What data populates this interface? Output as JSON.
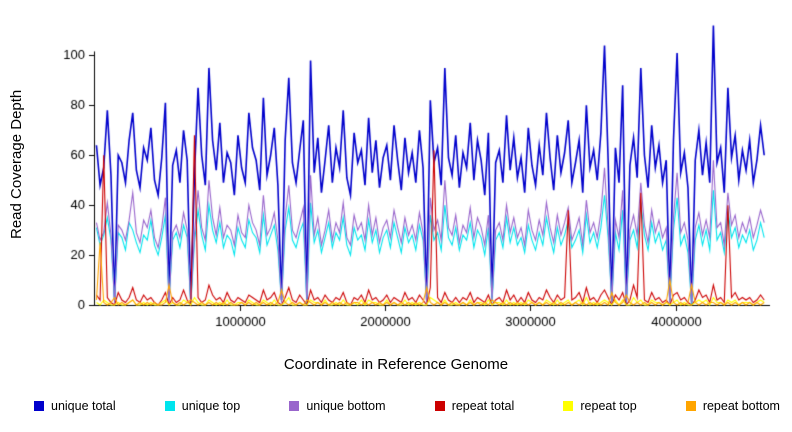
{
  "chart_data": {
    "type": "line",
    "title": "",
    "xlabel": "Coordinate in Reference Genome",
    "ylabel": "Read Coverage Depth",
    "xlim": [
      0,
      4650000
    ],
    "ylim": [
      0,
      115
    ],
    "x_ticks": [
      1000000,
      2000000,
      3000000,
      4000000
    ],
    "x_tick_labels": [
      "1000000",
      "2000000",
      "3000000",
      "4000000"
    ],
    "y_ticks": [
      0,
      20,
      40,
      60,
      80,
      100
    ],
    "x_start": 10000,
    "x_step": 25000,
    "grid": false,
    "legend_position": "bottom",
    "axis_color": "#000000",
    "series": [
      {
        "name": "unique total",
        "color": "#0000CC",
        "values": [
          64,
          48,
          55,
          78,
          52,
          2,
          60,
          57,
          49,
          66,
          77,
          54,
          47,
          63,
          58,
          71,
          50,
          44,
          59,
          81,
          3,
          56,
          62,
          49,
          70,
          58,
          1,
          52,
          87,
          60,
          48,
          95,
          66,
          54,
          73,
          49,
          61,
          57,
          44,
          68,
          55,
          49,
          77,
          63,
          58,
          46,
          83,
          52,
          60,
          71,
          48,
          2,
          66,
          91,
          57,
          49,
          62,
          74,
          1,
          98,
          53,
          67,
          45,
          58,
          72,
          49,
          63,
          55,
          78,
          51,
          44,
          69,
          57,
          62,
          48,
          75,
          53,
          66,
          47,
          59,
          64,
          50,
          72,
          58,
          46,
          67,
          53,
          61,
          49,
          70,
          55,
          2,
          82,
          57,
          63,
          48,
          95,
          59,
          52,
          68,
          47,
          61,
          55,
          73,
          50,
          66,
          58,
          44,
          69,
          3,
          57,
          62,
          49,
          76,
          54,
          67,
          51,
          59,
          45,
          71,
          56,
          48,
          64,
          52,
          77,
          59,
          46,
          68,
          53,
          61,
          74,
          49,
          57,
          66,
          45,
          80,
          55,
          62,
          50,
          69,
          104,
          58,
          2,
          63,
          49,
          88,
          1,
          56,
          67,
          51,
          95,
          60,
          47,
          72,
          55,
          64,
          49,
          58,
          2,
          66,
          101,
          53,
          61,
          47,
          1,
          58,
          70,
          52,
          65,
          49,
          112,
          57,
          63,
          45,
          87,
          59,
          68,
          50,
          62,
          54,
          66,
          49,
          58,
          72,
          60
        ]
      },
      {
        "name": "unique top",
        "color": "#00E5EE",
        "values": [
          31,
          24,
          28,
          35,
          26,
          1,
          29,
          27,
          22,
          33,
          30,
          25,
          21,
          28,
          26,
          34,
          24,
          20,
          27,
          36,
          2,
          26,
          29,
          23,
          32,
          27,
          0,
          25,
          38,
          28,
          22,
          40,
          30,
          25,
          33,
          23,
          28,
          26,
          20,
          31,
          26,
          23,
          34,
          29,
          27,
          21,
          36,
          24,
          28,
          32,
          22,
          1,
          30,
          39,
          26,
          23,
          29,
          33,
          0,
          41,
          25,
          30,
          21,
          27,
          33,
          23,
          29,
          26,
          35,
          24,
          20,
          31,
          26,
          28,
          22,
          34,
          25,
          30,
          21,
          27,
          30,
          23,
          33,
          27,
          21,
          31,
          25,
          28,
          22,
          32,
          26,
          1,
          36,
          26,
          29,
          22,
          40,
          27,
          24,
          31,
          22,
          28,
          26,
          33,
          23,
          30,
          27,
          20,
          31,
          1,
          26,
          29,
          23,
          35,
          25,
          31,
          24,
          27,
          21,
          32,
          26,
          22,
          29,
          24,
          35,
          27,
          21,
          31,
          24,
          28,
          34,
          23,
          26,
          30,
          21,
          36,
          25,
          29,
          23,
          31,
          44,
          27,
          1,
          29,
          22,
          38,
          0,
          26,
          30,
          23,
          41,
          28,
          22,
          33,
          25,
          29,
          22,
          26,
          1,
          30,
          43,
          24,
          28,
          21,
          0,
          26,
          32,
          24,
          30,
          22,
          46,
          26,
          29,
          21,
          38,
          27,
          31,
          23,
          28,
          25,
          30,
          22,
          26,
          33,
          27
        ]
      },
      {
        "name": "unique bottom",
        "color": "#9966CC",
        "values": [
          33,
          26,
          29,
          41,
          28,
          1,
          32,
          30,
          26,
          34,
          45,
          29,
          25,
          34,
          31,
          38,
          27,
          23,
          31,
          43,
          1,
          29,
          32,
          27,
          37,
          30,
          1,
          28,
          46,
          31,
          26,
          50,
          35,
          28,
          39,
          27,
          32,
          30,
          24,
          36,
          29,
          27,
          40,
          33,
          30,
          24,
          44,
          28,
          31,
          37,
          26,
          1,
          35,
          48,
          30,
          27,
          33,
          39,
          1,
          52,
          28,
          35,
          24,
          30,
          38,
          26,
          33,
          29,
          41,
          27,
          24,
          36,
          30,
          33,
          26,
          40,
          28,
          35,
          25,
          31,
          34,
          27,
          38,
          31,
          25,
          35,
          28,
          32,
          26,
          37,
          29,
          1,
          43,
          30,
          34,
          26,
          50,
          31,
          28,
          36,
          25,
          32,
          29,
          39,
          27,
          35,
          31,
          24,
          36,
          2,
          30,
          33,
          26,
          40,
          29,
          35,
          27,
          31,
          24,
          38,
          30,
          26,
          34,
          28,
          41,
          31,
          25,
          36,
          28,
          33,
          39,
          26,
          30,
          35,
          24,
          42,
          29,
          33,
          27,
          37,
          55,
          31,
          1,
          34,
          27,
          46,
          1,
          30,
          36,
          28,
          49,
          32,
          25,
          38,
          29,
          34,
          27,
          31,
          1,
          35,
          53,
          29,
          33,
          26,
          1,
          31,
          37,
          28,
          34,
          27,
          58,
          31,
          33,
          24,
          45,
          32,
          36,
          27,
          33,
          29,
          35,
          27,
          32,
          38,
          33
        ]
      },
      {
        "name": "repeat total",
        "color": "#CC0000",
        "values": [
          4,
          2,
          60,
          3,
          1,
          0,
          5,
          2,
          1,
          3,
          7,
          2,
          1,
          4,
          2,
          3,
          1,
          0,
          2,
          5,
          0,
          3,
          1,
          2,
          6,
          2,
          0,
          68,
          3,
          1,
          2,
          8,
          4,
          2,
          3,
          1,
          5,
          2,
          1,
          3,
          2,
          1,
          4,
          3,
          2,
          1,
          6,
          2,
          3,
          5,
          1,
          0,
          3,
          7,
          2,
          1,
          4,
          2,
          0,
          6,
          2,
          3,
          1,
          4,
          2,
          1,
          3,
          2,
          5,
          1,
          0,
          3,
          2,
          4,
          1,
          6,
          2,
          3,
          1,
          2,
          4,
          1,
          3,
          2,
          1,
          5,
          2,
          3,
          1,
          4,
          2,
          0,
          7,
          62,
          3,
          1,
          5,
          2,
          1,
          3,
          1,
          3,
          2,
          5,
          1,
          3,
          2,
          1,
          4,
          0,
          2,
          3,
          1,
          6,
          2,
          4,
          1,
          3,
          1,
          5,
          2,
          1,
          3,
          2,
          6,
          3,
          1,
          4,
          2,
          3,
          38,
          2,
          3,
          5,
          1,
          7,
          2,
          3,
          1,
          4,
          6,
          3,
          0,
          4,
          2,
          5,
          0,
          2,
          8,
          3,
          45,
          2,
          1,
          5,
          2,
          3,
          1,
          2,
          0,
          4,
          5,
          2,
          3,
          1,
          0,
          2,
          6,
          3,
          4,
          1,
          8,
          2,
          3,
          1,
          40,
          3,
          5,
          2,
          3,
          2,
          3,
          1,
          2,
          4,
          2
        ]
      },
      {
        "name": "repeat top",
        "color": "#FFFF00",
        "values": [
          1,
          0,
          2,
          1,
          0,
          0,
          1,
          0,
          0,
          1,
          2,
          0,
          0,
          1,
          0,
          1,
          0,
          0,
          1,
          2,
          0,
          1,
          0,
          0,
          2,
          1,
          0,
          3,
          1,
          0,
          0,
          2,
          1,
          0,
          1,
          0,
          2,
          0,
          0,
          1,
          1,
          0,
          2,
          1,
          0,
          0,
          2,
          1,
          0,
          2,
          0,
          0,
          1,
          3,
          0,
          0,
          1,
          0,
          0,
          2,
          1,
          1,
          0,
          2,
          0,
          0,
          1,
          0,
          2,
          0,
          0,
          1,
          0,
          2,
          0,
          2,
          1,
          1,
          0,
          0,
          2,
          0,
          1,
          0,
          0,
          2,
          0,
          1,
          0,
          1,
          0,
          0,
          3,
          2,
          1,
          0,
          2,
          0,
          0,
          1,
          0,
          1,
          0,
          2,
          0,
          1,
          1,
          0,
          2,
          0,
          1,
          1,
          0,
          2,
          0,
          1,
          0,
          1,
          0,
          2,
          1,
          0,
          1,
          0,
          2,
          1,
          0,
          2,
          0,
          1,
          2,
          0,
          1,
          2,
          0,
          3,
          0,
          1,
          0,
          1,
          2,
          1,
          0,
          2,
          0,
          2,
          0,
          0,
          3,
          1,
          2,
          0,
          0,
          2,
          1,
          1,
          0,
          1,
          0,
          1,
          2,
          0,
          1,
          0,
          0,
          1,
          2,
          1,
          2,
          0,
          3,
          1,
          1,
          0,
          2,
          1,
          2,
          0,
          1,
          1,
          1,
          0,
          1,
          2,
          1
        ]
      },
      {
        "name": "repeat bottom",
        "color": "#FFA500",
        "values": [
          2,
          25,
          1,
          0,
          1,
          3,
          0,
          1,
          0,
          1,
          2,
          0,
          1,
          0,
          1,
          0,
          1,
          0,
          0,
          1,
          8,
          1,
          0,
          1,
          0,
          1,
          2,
          1,
          0,
          1,
          0,
          1,
          0,
          1,
          0,
          1,
          0,
          1,
          0,
          0,
          1,
          0,
          1,
          0,
          1,
          0,
          1,
          0,
          1,
          0,
          1,
          6,
          1,
          0,
          1,
          0,
          1,
          0,
          2,
          1,
          0,
          1,
          0,
          1,
          0,
          1,
          0,
          1,
          0,
          1,
          0,
          1,
          1,
          0,
          1,
          0,
          1,
          0,
          1,
          0,
          1,
          0,
          1,
          0,
          1,
          0,
          1,
          0,
          1,
          0,
          1,
          7,
          1,
          0,
          1,
          0,
          1,
          0,
          1,
          0,
          0,
          1,
          0,
          1,
          0,
          1,
          0,
          1,
          0,
          2,
          1,
          0,
          1,
          0,
          1,
          0,
          1,
          0,
          1,
          0,
          1,
          0,
          1,
          0,
          1,
          0,
          1,
          0,
          1,
          0,
          1,
          0,
          1,
          0,
          1,
          0,
          1,
          0,
          1,
          0,
          1,
          0,
          5,
          1,
          0,
          1,
          4,
          1,
          0,
          1,
          0,
          1,
          0,
          1,
          0,
          1,
          0,
          1,
          10,
          1,
          0,
          1,
          0,
          1,
          8,
          1,
          0,
          1,
          0,
          1,
          1,
          0,
          1,
          0,
          1,
          0,
          1,
          0,
          1,
          0,
          1,
          0,
          1,
          0,
          1
        ]
      }
    ]
  }
}
